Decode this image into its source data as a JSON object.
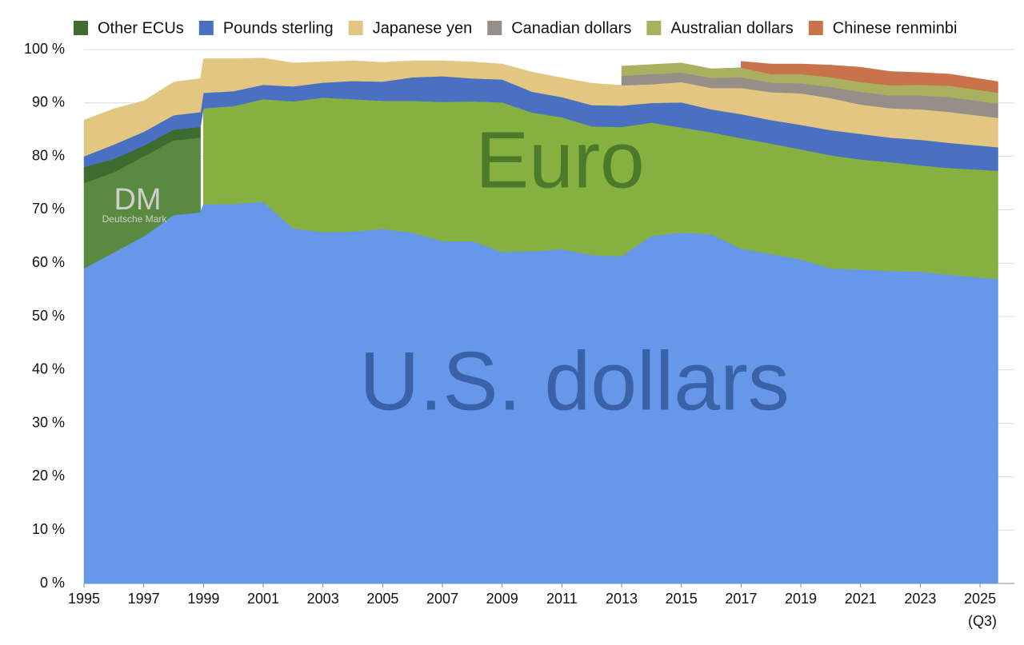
{
  "chart_data": {
    "type": "stacked-area",
    "x": [
      1995,
      1996,
      1997,
      1998,
      1998.9,
      1999,
      2000,
      2001,
      2002,
      2003,
      2004,
      2005,
      2006,
      2007,
      2008,
      2009,
      2010,
      2011,
      2012,
      2013,
      2014,
      2015,
      2016,
      2017,
      2018,
      2019,
      2020,
      2021,
      2022,
      2023,
      2024,
      2025.6
    ],
    "series": [
      {
        "name": "U.S. dollars",
        "color": "#6797e8",
        "legend": false,
        "values": [
          59,
          62,
          65,
          69,
          69.5,
          71,
          71.1,
          71.5,
          66.5,
          65.8,
          65.9,
          66.4,
          65.7,
          64.1,
          64.1,
          62.1,
          62.2,
          62.6,
          61.5,
          61.3,
          65.1,
          65.7,
          65.4,
          62.7,
          61.7,
          60.7,
          59.0,
          58.8,
          58.5,
          58.4,
          57.8,
          57.0
        ]
      },
      {
        "name": "Deutsche Mark",
        "color": "#5a8a40",
        "legend": false,
        "values": [
          16,
          15,
          15,
          14,
          14,
          null,
          null,
          null,
          null,
          null,
          null,
          null,
          null,
          null,
          null,
          null,
          null,
          null,
          null,
          null,
          null,
          null,
          null,
          null,
          null,
          null,
          null,
          null,
          null,
          null,
          null,
          null
        ]
      },
      {
        "name": "Euro",
        "color": "#86b040",
        "legend": false,
        "values": [
          null,
          null,
          null,
          null,
          null,
          18,
          18.3,
          19.2,
          23.8,
          25.2,
          24.8,
          24.0,
          24.7,
          26.1,
          26.2,
          28,
          26,
          24.7,
          24.1,
          24.2,
          21.2,
          19.7,
          19.1,
          20.7,
          20.7,
          20.6,
          21.2,
          20.6,
          20.4,
          19.9,
          20.0,
          20.3
        ]
      },
      {
        "name": "Other ECUs",
        "color": "#3e6b30",
        "legend": true,
        "values": [
          3,
          2.5,
          2,
          2,
          2,
          null,
          null,
          null,
          null,
          null,
          null,
          null,
          null,
          null,
          null,
          null,
          null,
          null,
          null,
          null,
          null,
          null,
          null,
          null,
          null,
          null,
          null,
          null,
          null,
          null,
          null,
          null
        ]
      },
      {
        "name": "Pounds sterling",
        "color": "#4a70c2",
        "legend": true,
        "values": [
          2,
          2.7,
          2.6,
          2.7,
          2.8,
          2.9,
          2.8,
          2.7,
          2.8,
          2.8,
          3.4,
          3.6,
          4.4,
          4.8,
          4.3,
          4.3,
          3.9,
          3.8,
          4.0,
          4.0,
          3.7,
          4.7,
          4.3,
          4.5,
          4.4,
          4.6,
          4.7,
          4.8,
          4.6,
          4.8,
          4.7,
          4.4
        ]
      },
      {
        "name": "Japanese yen",
        "color": "#e3c682",
        "legend": true,
        "values": [
          6.8,
          6.7,
          5.8,
          6.2,
          6.3,
          6.4,
          6.1,
          5.0,
          4.4,
          3.9,
          3.8,
          3.6,
          3.1,
          2.9,
          3.1,
          2.9,
          3.7,
          3.6,
          4.1,
          3.8,
          3.5,
          3.8,
          4.0,
          4.9,
          5.2,
          5.9,
          6.0,
          5.5,
          5.5,
          5.7,
          5.8,
          5.5
        ]
      },
      {
        "name": "Canadian dollars",
        "color": "#968f88",
        "legend": true,
        "values": [
          null,
          null,
          null,
          null,
          null,
          null,
          null,
          null,
          null,
          null,
          null,
          null,
          null,
          null,
          null,
          null,
          null,
          null,
          null,
          1.8,
          1.9,
          1.8,
          1.9,
          2.0,
          1.8,
          1.9,
          2.1,
          2.4,
          2.4,
          2.6,
          2.8,
          2.7
        ]
      },
      {
        "name": "Australian dollars",
        "color": "#a9b160",
        "legend": true,
        "values": [
          null,
          null,
          null,
          null,
          null,
          null,
          null,
          null,
          null,
          null,
          null,
          null,
          null,
          null,
          null,
          null,
          null,
          null,
          null,
          1.8,
          1.8,
          1.8,
          1.7,
          1.8,
          1.6,
          1.7,
          1.8,
          1.8,
          1.9,
          2.0,
          2.1,
          2.0
        ]
      },
      {
        "name": "Chinese renminbi",
        "color": "#c9734b",
        "legend": true,
        "values": [
          null,
          null,
          null,
          null,
          null,
          null,
          null,
          null,
          null,
          null,
          null,
          null,
          null,
          null,
          null,
          null,
          null,
          null,
          null,
          null,
          null,
          null,
          null,
          1.2,
          1.9,
          1.9,
          2.3,
          2.8,
          2.6,
          2.3,
          2.2,
          2.1
        ]
      }
    ],
    "annotations": [
      "DM",
      "(Q3)"
    ],
    "xlim": [
      1995,
      2026.15
    ],
    "xticks": [
      1995,
      1997,
      1999,
      2001,
      2003,
      2005,
      2007,
      2009,
      2011,
      2013,
      2015,
      2017,
      2019,
      2021,
      2023,
      2025
    ],
    "ylim": [
      0,
      100
    ],
    "yticks": [
      {
        "value": 0,
        "label": "0 %"
      },
      {
        "value": 10,
        "label": "10 %"
      },
      {
        "value": 20,
        "label": "20 %"
      },
      {
        "value": 30,
        "label": "30 %"
      },
      {
        "value": 40,
        "label": "40 %"
      },
      {
        "value": 50,
        "label": "50 %"
      },
      {
        "value": 60,
        "label": "60 %"
      },
      {
        "value": 70,
        "label": "70 %"
      },
      {
        "value": 80,
        "label": "80 %"
      },
      {
        "value": 90,
        "label": "90 %"
      },
      {
        "value": 100,
        "label": "100 %"
      }
    ],
    "grid": true
  }
}
